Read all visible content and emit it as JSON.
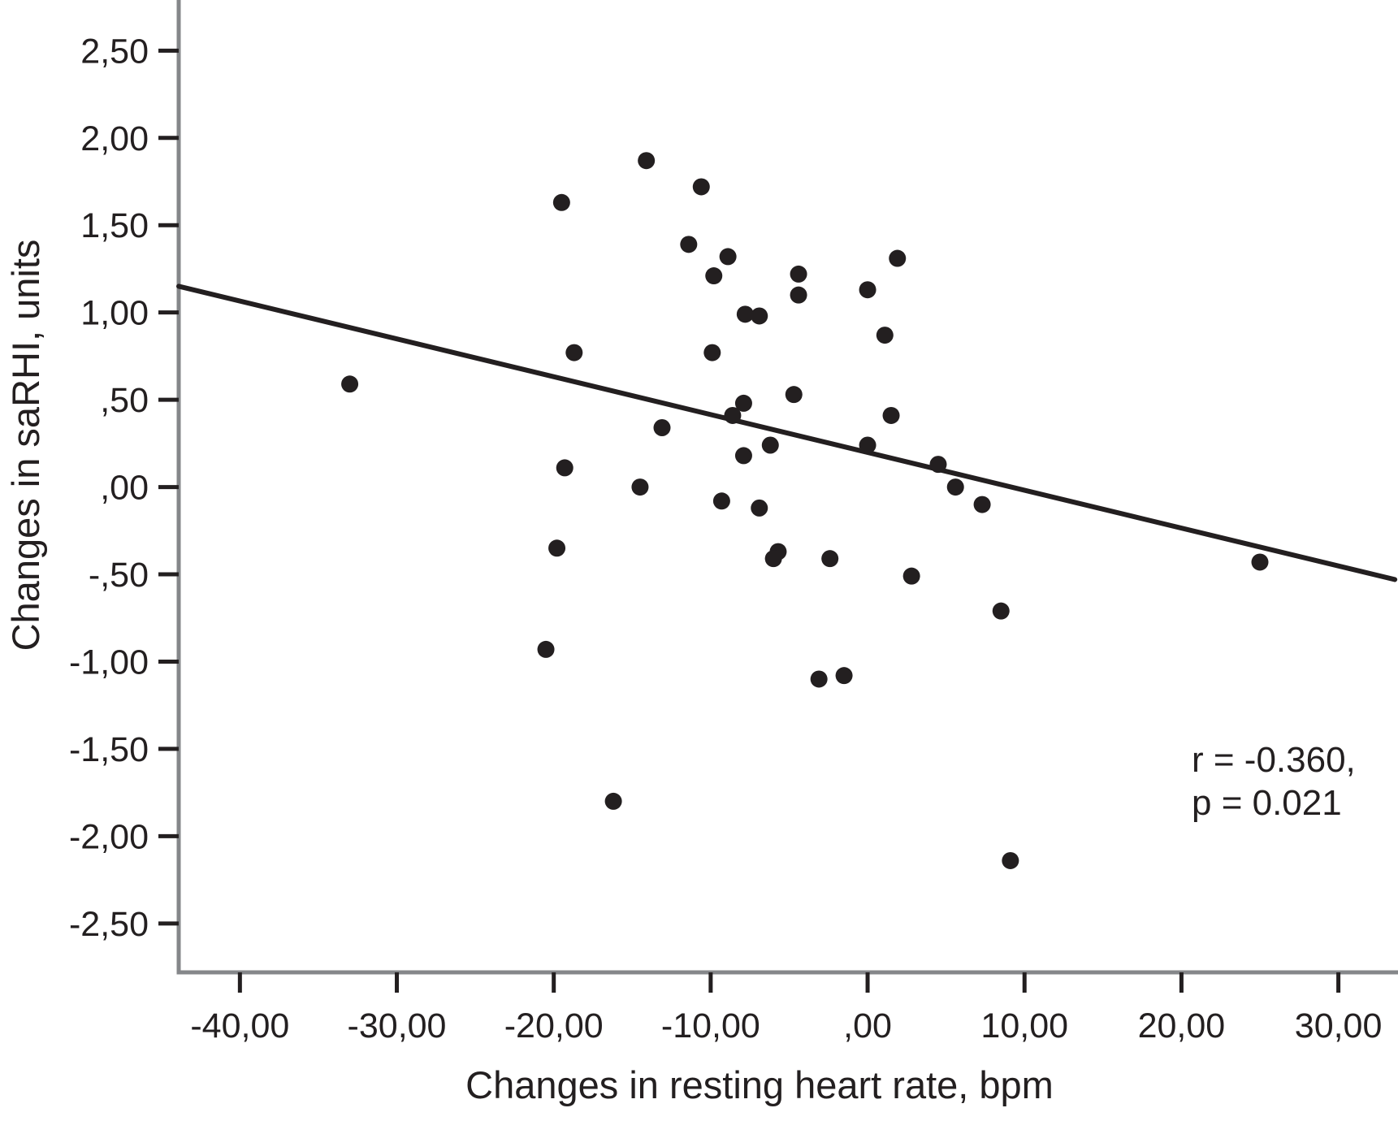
{
  "figure": {
    "background": "#ffffff"
  },
  "chart_data": {
    "type": "scatter",
    "title": "",
    "xlabel": "Changes in resting heart rate, bpm",
    "ylabel": "Changes in saRHI, units",
    "xlim": [
      -43.9,
      33.8
    ],
    "ylim": [
      -2.78,
      2.79
    ],
    "grid": false,
    "legend_position": "none",
    "x_ticks": {
      "values": [
        -40,
        -30,
        -20,
        -10,
        0,
        10,
        20,
        30
      ],
      "labels": [
        "-40,00",
        "-30,00",
        "-20,00",
        "-10,00",
        ",00",
        "10,00",
        "20,00",
        "30,00"
      ]
    },
    "y_ticks": {
      "values": [
        2.5,
        2.0,
        1.5,
        1.0,
        0.5,
        0.0,
        -0.5,
        -1.0,
        -1.5,
        -2.0,
        -2.5
      ],
      "labels": [
        "2,50",
        "2,00",
        "1,50",
        "1,00",
        ",50",
        ",00",
        "-,50",
        "-1,00",
        "-1,50",
        "-2,00",
        "-2,50"
      ]
    },
    "points": [
      [
        -14.1,
        1.87
      ],
      [
        -10.6,
        1.72
      ],
      [
        -19.5,
        1.63
      ],
      [
        -11.4,
        1.39
      ],
      [
        -8.9,
        1.32
      ],
      [
        1.9,
        1.31
      ],
      [
        -4.4,
        1.22
      ],
      [
        -9.8,
        1.21
      ],
      [
        0.0,
        1.13
      ],
      [
        -4.4,
        1.1
      ],
      [
        -7.8,
        0.99
      ],
      [
        -6.9,
        0.98
      ],
      [
        1.1,
        0.87
      ],
      [
        -18.7,
        0.77
      ],
      [
        -9.9,
        0.77
      ],
      [
        -33.0,
        0.59
      ],
      [
        -4.7,
        0.53
      ],
      [
        -7.9,
        0.48
      ],
      [
        -8.6,
        0.41
      ],
      [
        1.5,
        0.41
      ],
      [
        -13.1,
        0.34
      ],
      [
        -6.2,
        0.24
      ],
      [
        0.0,
        0.24
      ],
      [
        -7.9,
        0.18
      ],
      [
        4.5,
        0.13
      ],
      [
        -19.3,
        0.11
      ],
      [
        -14.5,
        0.0
      ],
      [
        5.6,
        0.0
      ],
      [
        -9.3,
        -0.08
      ],
      [
        7.3,
        -0.1
      ],
      [
        -6.9,
        -0.12
      ],
      [
        -19.8,
        -0.35
      ],
      [
        -5.7,
        -0.37
      ],
      [
        -6.0,
        -0.41
      ],
      [
        -2.4,
        -0.41
      ],
      [
        2.8,
        -0.51
      ],
      [
        8.5,
        -0.71
      ],
      [
        -20.5,
        -0.93
      ],
      [
        -3.1,
        -1.1
      ],
      [
        -1.5,
        -1.08
      ],
      [
        -16.2,
        -1.8
      ],
      [
        9.1,
        -2.14
      ],
      [
        25.0,
        -0.43
      ]
    ],
    "regression_line": {
      "x1": -43.9,
      "y1": 1.15,
      "x2": 33.6,
      "y2": -0.53,
      "slope_units_per_bpm": -0.0216,
      "intercept_units": 0.2
    },
    "annotation": {
      "line1": "r = -0.360,",
      "line2": "p = 0.021"
    },
    "colors": {
      "marker": "#231f20",
      "regression_line": "#231f20",
      "axis_line": "#85878a",
      "tick": "#231f20",
      "text": "#231f20"
    },
    "marker": {
      "shape": "circle",
      "radius_px": 10.5
    }
  }
}
